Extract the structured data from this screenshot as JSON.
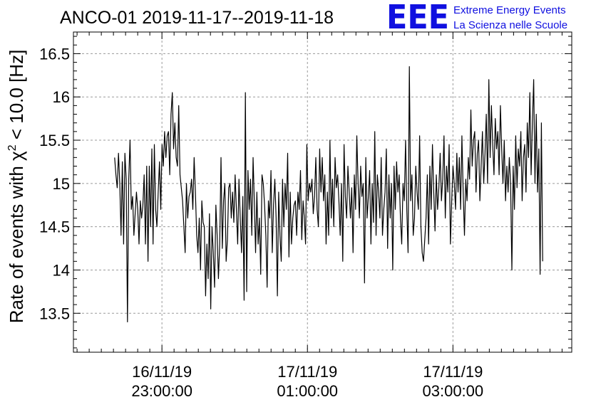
{
  "header": {
    "title": "ANCO-01 2019-11-17--2019-11-18",
    "logo_mark": "EEE",
    "logo_line1": "Extreme Energy Events",
    "logo_line2": "La Scienza nelle Scuole",
    "logo_color": "#1010e0"
  },
  "chart_data": {
    "type": "line",
    "ylabel_prefix": "Rate of events with ",
    "ylabel_symbol": "χ",
    "ylabel_power": "2",
    "ylabel_suffix": " < 10.0 [Hz]",
    "ylim": [
      13.05,
      16.75
    ],
    "yticks": [
      13.5,
      14,
      14.5,
      15,
      15.5,
      16,
      16.5
    ],
    "ytick_labels": [
      "13.5",
      "14",
      "14.5",
      "15",
      "15.5",
      "16",
      "16.5"
    ],
    "xlim": [
      "2019-11-16T21:47:00",
      "2019-11-17T04:38:00"
    ],
    "xticks": [
      {
        "t": "2019-11-16T23:00:00",
        "date": "16/11/19",
        "time": "23:00:00"
      },
      {
        "t": "2019-11-17T01:00:00",
        "date": "17/11/19",
        "time": "01:00:00"
      },
      {
        "t": "2019-11-17T03:00:00",
        "date": "17/11/19",
        "time": "03:00:00"
      }
    ],
    "grid": true,
    "line_color": "#000000",
    "series": [
      {
        "start": "2019-11-16T22:21:00",
        "end": "2019-11-17T04:14:00",
        "values": [
          15.3,
          15.1,
          14.95,
          15.35,
          15.0,
          14.4,
          15.25,
          14.3,
          15.35,
          15.05,
          13.4,
          15.05,
          15.5,
          14.7,
          14.85,
          14.4,
          14.65,
          14.9,
          14.7,
          14.3,
          14.8,
          14.6,
          14.75,
          15.1,
          14.3,
          15.2,
          14.1,
          15.2,
          14.5,
          15.4,
          14.3,
          15.45,
          14.7,
          14.5,
          14.9,
          15.25,
          14.7,
          15.45,
          15.2,
          15.6,
          15.3,
          15.55,
          15.6,
          15.1,
          15.8,
          16.05,
          15.4,
          15.7,
          15.3,
          15.2,
          15.9,
          15.1,
          14.95,
          14.8,
          14.5,
          14.2,
          15.0,
          14.6,
          14.85,
          14.9,
          15.05,
          14.7,
          15.3,
          14.9,
          14.4,
          14.2,
          14.6,
          14.0,
          14.8,
          14.55,
          14.5,
          13.7,
          14.3,
          13.9,
          14.65,
          13.55,
          14.5,
          14.2,
          13.8,
          14.75,
          14.4,
          13.9,
          14.3,
          15.3,
          14.25,
          14.8,
          15.0,
          14.1,
          14.35,
          14.95,
          15.0,
          14.6,
          14.9,
          14.55,
          15.1,
          14.7,
          14.3,
          15.05,
          14.6,
          14.2,
          14.85,
          13.65,
          16.05,
          13.75,
          15.15,
          14.7,
          15.05,
          14.4,
          15.3,
          14.8,
          14.2,
          14.9,
          14.3,
          14.6,
          13.95,
          15.1,
          15.0,
          14.75,
          14.4,
          13.8,
          14.8,
          14.6,
          15.15,
          14.2,
          14.75,
          15.05,
          14.6,
          13.7,
          14.9,
          14.4,
          14.1,
          15.05,
          14.5,
          15.0,
          14.7,
          15.35,
          14.15,
          14.9,
          14.3,
          14.6,
          14.75,
          14.8,
          14.4,
          14.9,
          14.7,
          15.15,
          14.35,
          14.8,
          14.6,
          14.3,
          15.45,
          14.8,
          15.0,
          14.9,
          15.05,
          14.65,
          14.85,
          15.3,
          14.7,
          14.5,
          15.4,
          14.9,
          15.3,
          14.8,
          15.1,
          14.3,
          14.9,
          14.4,
          15.5,
          14.6,
          15.05,
          14.5,
          15.3,
          14.95,
          15.1,
          14.8,
          14.4,
          15.0,
          14.1,
          15.45,
          14.85,
          14.6,
          15.2,
          14.9,
          14.6,
          14.95,
          14.2,
          15.1,
          14.7,
          15.55,
          15.0,
          14.6,
          15.2,
          14.85,
          15.0,
          13.85,
          15.3,
          14.6,
          14.85,
          15.15,
          14.3,
          15.0,
          14.55,
          15.6,
          14.4,
          15.1,
          14.9,
          14.6,
          15.3,
          14.4,
          14.7,
          14.9,
          15.4,
          14.25,
          15.1,
          14.6,
          15.0,
          14.0,
          15.2,
          14.7,
          15.25,
          14.9,
          15.1,
          14.6,
          14.3,
          15.0,
          14.8,
          15.5,
          14.7,
          14.2,
          16.35,
          14.8,
          15.1,
          14.4,
          14.6,
          15.2,
          14.9,
          14.7,
          15.55,
          14.5,
          14.2,
          14.1,
          14.35,
          14.6,
          15.1,
          14.3,
          15.2,
          14.7,
          15.45,
          14.9,
          14.45,
          15.1,
          14.7,
          14.95,
          15.35,
          14.8,
          15.05,
          15.55,
          14.6,
          15.2,
          14.9,
          15.45,
          14.3,
          14.8,
          15.2,
          15.0,
          14.7,
          15.35,
          14.9,
          15.3,
          14.7,
          15.55,
          14.9,
          14.4,
          15.05,
          14.8,
          15.3,
          15.05,
          15.85,
          15.2,
          15.5,
          15.6,
          14.9,
          15.35,
          15.5,
          14.8,
          15.2,
          15.6,
          15.0,
          15.35,
          15.8,
          15.0,
          16.2,
          15.3,
          15.9,
          15.45,
          15.1,
          15.75,
          15.4,
          15.6,
          15.1,
          15.9,
          15.4,
          15.0,
          15.5,
          14.8,
          15.2,
          14.9,
          15.3,
          15.0,
          14.0,
          15.2,
          14.7,
          15.55,
          14.95,
          15.4,
          15.2,
          15.6,
          14.8,
          15.3,
          15.45,
          14.9,
          15.7,
          15.3,
          16.05,
          15.1,
          15.7,
          16.2,
          15.0,
          15.8,
          14.9,
          15.4,
          13.95,
          15.7,
          14.1
        ]
      }
    ]
  }
}
